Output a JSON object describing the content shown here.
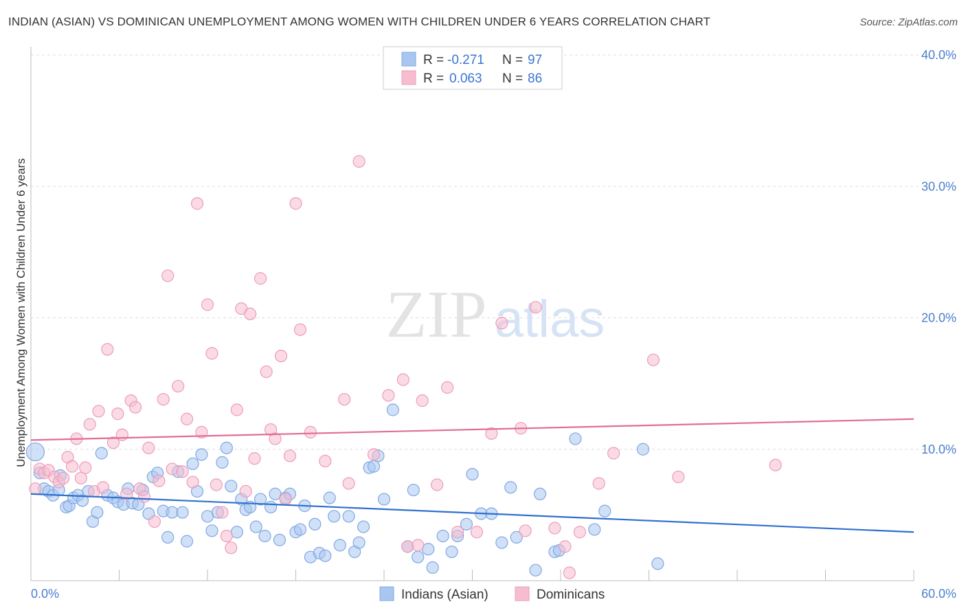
{
  "header": {
    "title": "INDIAN (ASIAN) VS DOMINICAN UNEMPLOYMENT AMONG WOMEN WITH CHILDREN UNDER 6 YEARS CORRELATION CHART",
    "source": "Source: ZipAtlas.com"
  },
  "watermark": {
    "zip": "ZIP",
    "atlas": "atlas"
  },
  "colors": {
    "blue_fill": "#a9c6f0",
    "blue_stroke": "#7fa8e4",
    "blue_line": "#2f6fcd",
    "pink_fill": "#f6bdd0",
    "pink_stroke": "#ee9bb8",
    "pink_line": "#e06c96",
    "tick_text": "#4a7fcf",
    "grid": "#dddddd"
  },
  "legend": {
    "rows": [
      {
        "r_label": "R =",
        "r_value": "-0.271",
        "n_label": "N =",
        "n_value": "97",
        "series": "Indians (Asian)"
      },
      {
        "r_label": "R =",
        "r_value": "0.063",
        "n_label": "N =",
        "n_value": "86",
        "series": "Dominicans"
      }
    ]
  },
  "chart_data": {
    "type": "scatter",
    "title": "INDIAN (ASIAN) VS DOMINICAN UNEMPLOYMENT AMONG WOMEN WITH CHILDREN UNDER 6 YEARS CORRELATION CHART",
    "xlabel": "",
    "ylabel": "Unemployment Among Women with Children Under 6 years",
    "xlim": [
      0,
      60
    ],
    "ylim": [
      0,
      40
    ],
    "x_tick_labels": [
      "0.0%",
      "60.0%"
    ],
    "y_ticks": [
      10,
      20,
      30,
      40
    ],
    "y_tick_labels": [
      "10.0%",
      "20.0%",
      "30.0%",
      "40.0%"
    ],
    "grid": "horizontal dashed",
    "legend_position": "top-center",
    "series": [
      {
        "name": "Indians (Asian)",
        "color": "#a9c6f0",
        "trend": {
          "x": [
            0,
            60
          ],
          "y": [
            6.6,
            3.7
          ]
        },
        "points": [
          [
            0.3,
            9.8
          ],
          [
            0.6,
            8.2
          ],
          [
            0.9,
            7.0
          ],
          [
            1.2,
            6.8
          ],
          [
            1.5,
            6.5
          ],
          [
            1.9,
            6.9
          ],
          [
            2.0,
            8.0
          ],
          [
            2.4,
            5.6
          ],
          [
            2.6,
            5.7
          ],
          [
            2.9,
            6.3
          ],
          [
            3.2,
            6.5
          ],
          [
            3.5,
            6.1
          ],
          [
            3.9,
            6.8
          ],
          [
            4.2,
            4.5
          ],
          [
            4.5,
            5.2
          ],
          [
            4.8,
            9.7
          ],
          [
            5.2,
            6.5
          ],
          [
            5.6,
            6.3
          ],
          [
            5.9,
            6.0
          ],
          [
            6.3,
            5.8
          ],
          [
            6.6,
            7.0
          ],
          [
            6.9,
            5.9
          ],
          [
            7.3,
            5.8
          ],
          [
            7.6,
            6.9
          ],
          [
            8.0,
            5.1
          ],
          [
            8.3,
            7.9
          ],
          [
            8.6,
            8.2
          ],
          [
            9.0,
            5.3
          ],
          [
            9.3,
            3.3
          ],
          [
            9.6,
            5.2
          ],
          [
            10.0,
            8.3
          ],
          [
            10.3,
            5.2
          ],
          [
            10.6,
            3.0
          ],
          [
            11.0,
            8.9
          ],
          [
            11.3,
            6.8
          ],
          [
            11.6,
            9.6
          ],
          [
            12.0,
            4.9
          ],
          [
            12.3,
            3.8
          ],
          [
            12.7,
            5.2
          ],
          [
            13.0,
            9.0
          ],
          [
            13.3,
            10.1
          ],
          [
            13.6,
            7.2
          ],
          [
            14.0,
            3.7
          ],
          [
            14.3,
            6.2
          ],
          [
            14.6,
            5.4
          ],
          [
            14.9,
            5.6
          ],
          [
            15.3,
            4.1
          ],
          [
            15.6,
            6.2
          ],
          [
            15.9,
            3.4
          ],
          [
            16.3,
            5.6
          ],
          [
            16.6,
            6.6
          ],
          [
            16.9,
            3.1
          ],
          [
            17.3,
            6.3
          ],
          [
            17.6,
            6.6
          ],
          [
            18.0,
            3.7
          ],
          [
            18.3,
            3.9
          ],
          [
            18.6,
            5.7
          ],
          [
            19.0,
            1.8
          ],
          [
            19.3,
            4.3
          ],
          [
            19.6,
            2.1
          ],
          [
            20.0,
            1.9
          ],
          [
            20.3,
            6.3
          ],
          [
            20.6,
            4.9
          ],
          [
            21.0,
            2.7
          ],
          [
            21.6,
            4.9
          ],
          [
            22.0,
            2.2
          ],
          [
            22.3,
            2.9
          ],
          [
            22.6,
            4.1
          ],
          [
            23.0,
            8.6
          ],
          [
            23.3,
            8.7
          ],
          [
            23.6,
            9.5
          ],
          [
            24.0,
            6.2
          ],
          [
            24.6,
            13.0
          ],
          [
            25.6,
            2.6
          ],
          [
            26.0,
            6.9
          ],
          [
            26.3,
            1.8
          ],
          [
            27.0,
            2.4
          ],
          [
            27.3,
            1.0
          ],
          [
            28.0,
            3.4
          ],
          [
            28.6,
            2.2
          ],
          [
            29.0,
            3.4
          ],
          [
            29.6,
            4.3
          ],
          [
            30.0,
            8.1
          ],
          [
            30.6,
            5.1
          ],
          [
            31.3,
            5.1
          ],
          [
            32.0,
            2.9
          ],
          [
            32.6,
            7.1
          ],
          [
            33.0,
            3.3
          ],
          [
            34.3,
            0.8
          ],
          [
            34.6,
            6.6
          ],
          [
            35.6,
            2.2
          ],
          [
            35.9,
            2.3
          ],
          [
            37.0,
            10.8
          ],
          [
            38.3,
            3.9
          ],
          [
            39.0,
            5.3
          ],
          [
            41.6,
            10.0
          ],
          [
            42.6,
            1.3
          ]
        ]
      },
      {
        "name": "Dominicans",
        "color": "#f6bdd0",
        "trend": {
          "x": [
            0,
            60
          ],
          "y": [
            10.7,
            12.3
          ]
        },
        "points": [
          [
            0.3,
            7.0
          ],
          [
            0.6,
            8.5
          ],
          [
            0.9,
            8.2
          ],
          [
            1.2,
            8.4
          ],
          [
            1.6,
            7.9
          ],
          [
            1.9,
            7.5
          ],
          [
            2.2,
            7.8
          ],
          [
            2.5,
            9.4
          ],
          [
            2.8,
            8.7
          ],
          [
            3.1,
            10.8
          ],
          [
            3.4,
            7.8
          ],
          [
            3.7,
            8.6
          ],
          [
            4.0,
            11.9
          ],
          [
            4.3,
            6.8
          ],
          [
            4.6,
            12.9
          ],
          [
            4.9,
            7.1
          ],
          [
            5.2,
            17.6
          ],
          [
            5.6,
            10.5
          ],
          [
            5.9,
            12.7
          ],
          [
            6.2,
            11.1
          ],
          [
            6.5,
            6.6
          ],
          [
            6.8,
            13.7
          ],
          [
            7.1,
            13.2
          ],
          [
            7.4,
            7.0
          ],
          [
            7.7,
            6.4
          ],
          [
            8.0,
            10.1
          ],
          [
            8.4,
            4.5
          ],
          [
            8.7,
            7.6
          ],
          [
            9.0,
            13.8
          ],
          [
            9.3,
            23.2
          ],
          [
            9.6,
            8.5
          ],
          [
            10.0,
            14.8
          ],
          [
            10.3,
            8.3
          ],
          [
            10.6,
            12.3
          ],
          [
            11.0,
            7.5
          ],
          [
            11.3,
            28.7
          ],
          [
            11.6,
            11.3
          ],
          [
            12.0,
            21.0
          ],
          [
            12.3,
            17.3
          ],
          [
            12.6,
            7.3
          ],
          [
            13.0,
            5.2
          ],
          [
            13.3,
            3.4
          ],
          [
            13.6,
            2.5
          ],
          [
            14.0,
            13.0
          ],
          [
            14.3,
            20.7
          ],
          [
            14.6,
            6.8
          ],
          [
            14.9,
            20.3
          ],
          [
            15.2,
            9.3
          ],
          [
            15.6,
            23.0
          ],
          [
            16.0,
            15.9
          ],
          [
            16.3,
            11.5
          ],
          [
            16.6,
            10.8
          ],
          [
            17.0,
            17.1
          ],
          [
            17.3,
            6.2
          ],
          [
            17.6,
            9.5
          ],
          [
            18.0,
            28.7
          ],
          [
            18.3,
            19.1
          ],
          [
            19.0,
            11.3
          ],
          [
            20.0,
            9.1
          ],
          [
            21.3,
            13.8
          ],
          [
            21.6,
            7.4
          ],
          [
            22.3,
            31.9
          ],
          [
            23.3,
            9.6
          ],
          [
            24.3,
            14.1
          ],
          [
            25.3,
            15.3
          ],
          [
            25.6,
            2.6
          ],
          [
            26.3,
            2.7
          ],
          [
            26.6,
            13.7
          ],
          [
            27.6,
            7.3
          ],
          [
            28.3,
            14.7
          ],
          [
            29.0,
            3.7
          ],
          [
            30.3,
            3.7
          ],
          [
            31.3,
            11.2
          ],
          [
            32.0,
            19.6
          ],
          [
            33.3,
            11.6
          ],
          [
            33.6,
            3.8
          ],
          [
            34.3,
            20.8
          ],
          [
            35.6,
            4.0
          ],
          [
            36.3,
            2.6
          ],
          [
            36.6,
            0.6
          ],
          [
            37.3,
            3.7
          ],
          [
            38.6,
            7.4
          ],
          [
            39.6,
            9.7
          ],
          [
            42.3,
            16.8
          ],
          [
            44.0,
            7.9
          ],
          [
            50.6,
            8.8
          ]
        ]
      }
    ]
  }
}
